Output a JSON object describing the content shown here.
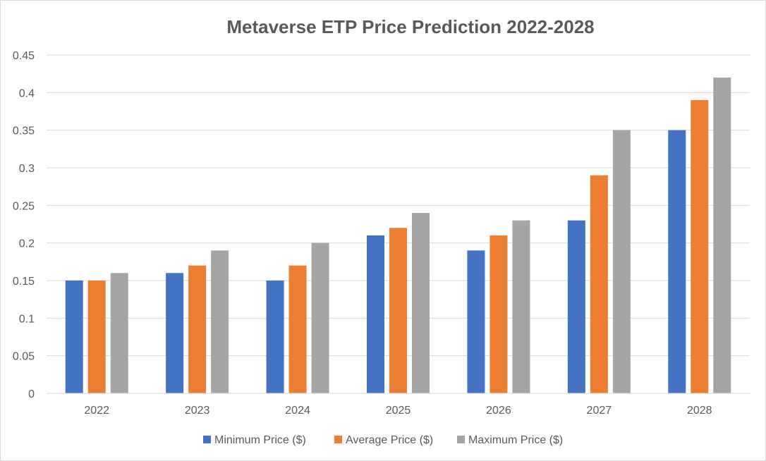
{
  "chart_data": {
    "type": "bar",
    "title": "Metaverse ETP Price Prediction 2022-2028",
    "xlabel": "",
    "ylabel": "",
    "categories": [
      "2022",
      "2023",
      "2024",
      "2025",
      "2026",
      "2027",
      "2028"
    ],
    "series": [
      {
        "name": "Minimum Price ($)",
        "color": "#4472c4",
        "values": [
          0.15,
          0.16,
          0.15,
          0.21,
          0.19,
          0.23,
          0.35
        ]
      },
      {
        "name": "Average Price ($)",
        "color": "#ed7d31",
        "values": [
          0.15,
          0.17,
          0.17,
          0.22,
          0.21,
          0.29,
          0.39
        ]
      },
      {
        "name": "Maximum Price ($)",
        "color": "#a5a5a5",
        "values": [
          0.16,
          0.19,
          0.2,
          0.24,
          0.23,
          0.35,
          0.42
        ]
      }
    ],
    "ylim": [
      0,
      0.45
    ],
    "yticks": [
      "0",
      "0.05",
      "0.1",
      "0.15",
      "0.2",
      "0.25",
      "0.3",
      "0.35",
      "0.4",
      "0.45"
    ],
    "grid": true,
    "legend_position": "bottom"
  }
}
